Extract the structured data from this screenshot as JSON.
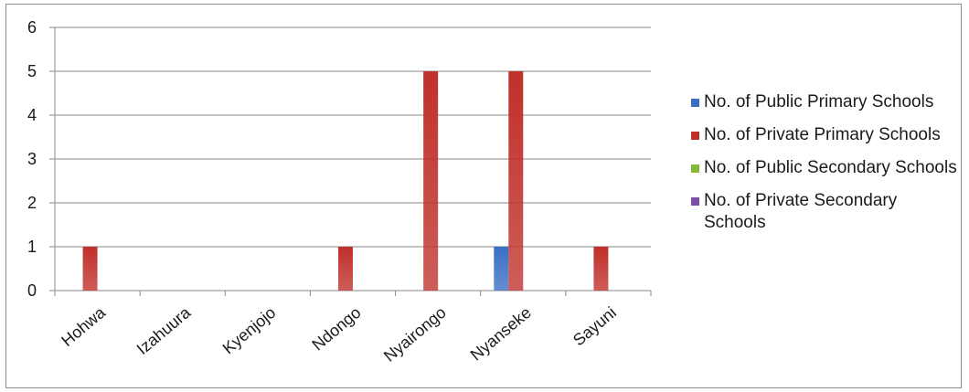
{
  "chart_data": {
    "type": "bar",
    "categories": [
      "Hohwa",
      "Izahuura",
      "Kyenjojo",
      "Ndongo",
      "Nyairongo",
      "Nyanseke",
      "Sayuni"
    ],
    "series": [
      {
        "name": "No. of Public Primary Schools",
        "color": "#3a6fc4",
        "values": [
          0,
          0,
          0,
          0,
          0,
          1,
          0
        ]
      },
      {
        "name": "No. of Private Primary Schools",
        "color": "#c0302b",
        "values": [
          1,
          0,
          0,
          1,
          5,
          5,
          1
        ]
      },
      {
        "name": "No. of Public Secondary Schools",
        "color": "#86b83a",
        "values": [
          0,
          0,
          0,
          0,
          0,
          0,
          0
        ]
      },
      {
        "name": "No. of Private Secondary Schools",
        "color": "#7a4fa8",
        "values": [
          0,
          0,
          0,
          0,
          0,
          0,
          0
        ]
      }
    ],
    "yticks": [
      "0",
      "1",
      "2",
      "3",
      "4",
      "5",
      "6"
    ],
    "ylim": [
      0,
      6
    ],
    "grid": true,
    "legend_position": "right",
    "title": "",
    "xlabel": "",
    "ylabel": ""
  }
}
